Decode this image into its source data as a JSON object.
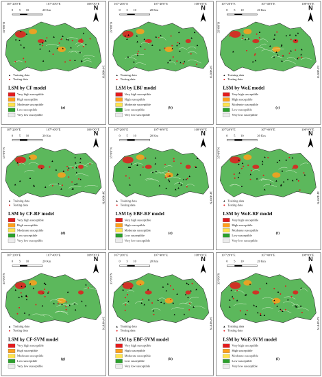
{
  "coordinates": {
    "top": [
      "107°20'0\"E",
      "107°40'0\"E",
      "108°0'0\"E"
    ],
    "side": [
      "35°0'0\"N",
      "34°40'0\"N"
    ]
  },
  "scale_bar": [
    "0",
    "5",
    "10",
    "20 Km"
  ],
  "north": "N",
  "point_legend": [
    "Training data",
    "Testing data"
  ],
  "susceptibility_legend": [
    {
      "label": "Very high susceptible",
      "color": "#e31a1c"
    },
    {
      "label": "High susceptible",
      "color": "#ff9f1a"
    },
    {
      "label": "Moderate susceptible",
      "color": "#ffe34d"
    },
    {
      "label": "Low susceptible",
      "color": "#2ca02c"
    },
    {
      "label": "Very low susceptible",
      "color": "#ececec"
    }
  ],
  "panels": [
    {
      "title": "LSM by CF model",
      "label": "(a)"
    },
    {
      "title": "LSM by EBF model",
      "label": "(b)"
    },
    {
      "title": "LSM by WoE model",
      "label": "(c)"
    },
    {
      "title": "LSM by CF-RF model",
      "label": "(d)"
    },
    {
      "title": "LSM by EBF-RF model",
      "label": "(e)"
    },
    {
      "title": "LSM by WoE-RF model",
      "label": "(f)"
    },
    {
      "title": "LSM by CF-SVM model",
      "label": "(g)"
    },
    {
      "title": "LSM by EBF-SVM model",
      "label": "(h)"
    },
    {
      "title": "LSM by WoE-SVM model",
      "label": "(i)"
    }
  ]
}
